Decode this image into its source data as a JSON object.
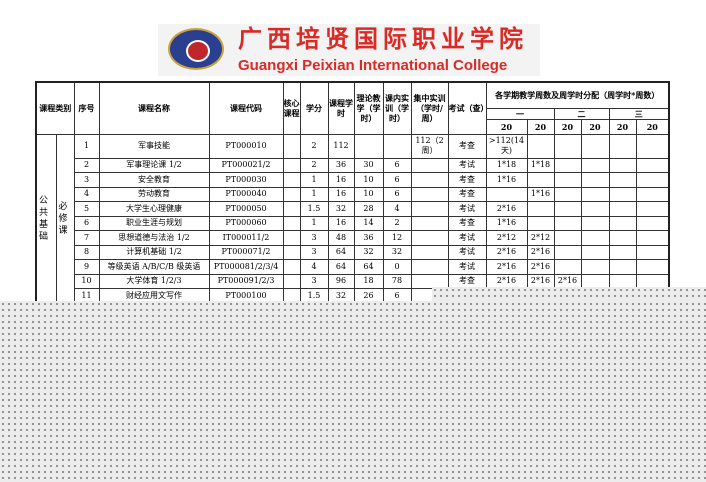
{
  "header": {
    "logo_cn": "广西培贤国际职业学院",
    "logo_en": "Guangxi Peixian International College"
  },
  "table": {
    "columns": {
      "category": "课程类别",
      "no": "序号",
      "name": "课程名称",
      "code": "课程代码",
      "core": "核心课程",
      "credits": "学分",
      "hours": "课程学时",
      "theory": "理论教学（学时）",
      "practice": "课内实训（学时）",
      "intensive": "集中实训（学时/周）",
      "exam": "考试（查）",
      "semester_header": "各学期教学周数及周学时分配（周学时*周数）",
      "years": [
        "一",
        "二",
        "三"
      ],
      "weeks": [
        "20",
        "20",
        "20",
        "20",
        "20",
        "20"
      ]
    },
    "category": {
      "group": "公共基础",
      "type": "必修课"
    },
    "rows": [
      {
        "no": "1",
        "name": "军事技能",
        "code": "PT000010",
        "core": "",
        "credits": "2",
        "hours": "112",
        "theory": "",
        "practice": "",
        "intensive": "112（2周）",
        "exam": "考查",
        "s": [
          ">112(14天)",
          "",
          "",
          "",
          "",
          ""
        ]
      },
      {
        "no": "2",
        "name": "军事理论课 1/2",
        "code": "PT000021/2",
        "core": "",
        "credits": "2",
        "hours": "36",
        "theory": "30",
        "practice": "6",
        "intensive": "",
        "exam": "考试",
        "s": [
          "1*18",
          "1*18",
          "",
          "",
          "",
          ""
        ]
      },
      {
        "no": "3",
        "name": "安全教育",
        "code": "PT000030",
        "core": "",
        "credits": "1",
        "hours": "16",
        "theory": "10",
        "practice": "6",
        "intensive": "",
        "exam": "考查",
        "s": [
          "1*16",
          "",
          "",
          "",
          "",
          ""
        ]
      },
      {
        "no": "4",
        "name": "劳动教育",
        "code": "PT000040",
        "core": "",
        "credits": "1",
        "hours": "16",
        "theory": "10",
        "practice": "6",
        "intensive": "",
        "exam": "考查",
        "s": [
          "",
          "1*16",
          "",
          "",
          "",
          ""
        ]
      },
      {
        "no": "5",
        "name": "大学生心理健康",
        "code": "PT000050",
        "core": "",
        "credits": "1.5",
        "hours": "32",
        "theory": "28",
        "practice": "4",
        "intensive": "",
        "exam": "考试",
        "s": [
          "2*16",
          "",
          "",
          "",
          "",
          ""
        ]
      },
      {
        "no": "6",
        "name": "职业生涯与规划",
        "code": "PT000060",
        "core": "",
        "credits": "1",
        "hours": "16",
        "theory": "14",
        "practice": "2",
        "intensive": "",
        "exam": "考查",
        "s": [
          "1*16",
          "",
          "",
          "",
          "",
          ""
        ]
      },
      {
        "no": "7",
        "name": "思想道德与法治 1/2",
        "code": "IT000011/2",
        "core": "",
        "credits": "3",
        "hours": "48",
        "theory": "36",
        "practice": "12",
        "intensive": "",
        "exam": "考试",
        "s": [
          "2*12",
          "2*12",
          "",
          "",
          "",
          ""
        ]
      },
      {
        "no": "8",
        "name": "计算机基础 1/2",
        "code": "PT000071/2",
        "core": "",
        "credits": "3",
        "hours": "64",
        "theory": "32",
        "practice": "32",
        "intensive": "",
        "exam": "考试",
        "s": [
          "2*16",
          "2*16",
          "",
          "",
          "",
          ""
        ]
      },
      {
        "no": "9",
        "name": "等级英语 A/B/C/B 级英语",
        "code": "PT000081/2/3/4",
        "core": "",
        "credits": "4",
        "hours": "64",
        "theory": "64",
        "practice": "0",
        "intensive": "",
        "exam": "考试",
        "s": [
          "2*16",
          "2*16",
          "",
          "",
          "",
          ""
        ]
      },
      {
        "no": "10",
        "name": "大学体育 1/2/3",
        "code": "PT000091/2/3",
        "core": "",
        "credits": "3",
        "hours": "96",
        "theory": "18",
        "practice": "78",
        "intensive": "",
        "exam": "考查",
        "s": [
          "2*16",
          "2*16",
          "2*16",
          "",
          "",
          ""
        ]
      },
      {
        "no": "11",
        "name": "财经应用文写作",
        "code": "PT000100",
        "core": "",
        "credits": "1.5",
        "hours": "32",
        "theory": "26",
        "practice": "6",
        "intensive": "",
        "exam": "",
        "s": [
          "",
          "",
          "",
          "",
          "",
          ""
        ]
      }
    ]
  }
}
